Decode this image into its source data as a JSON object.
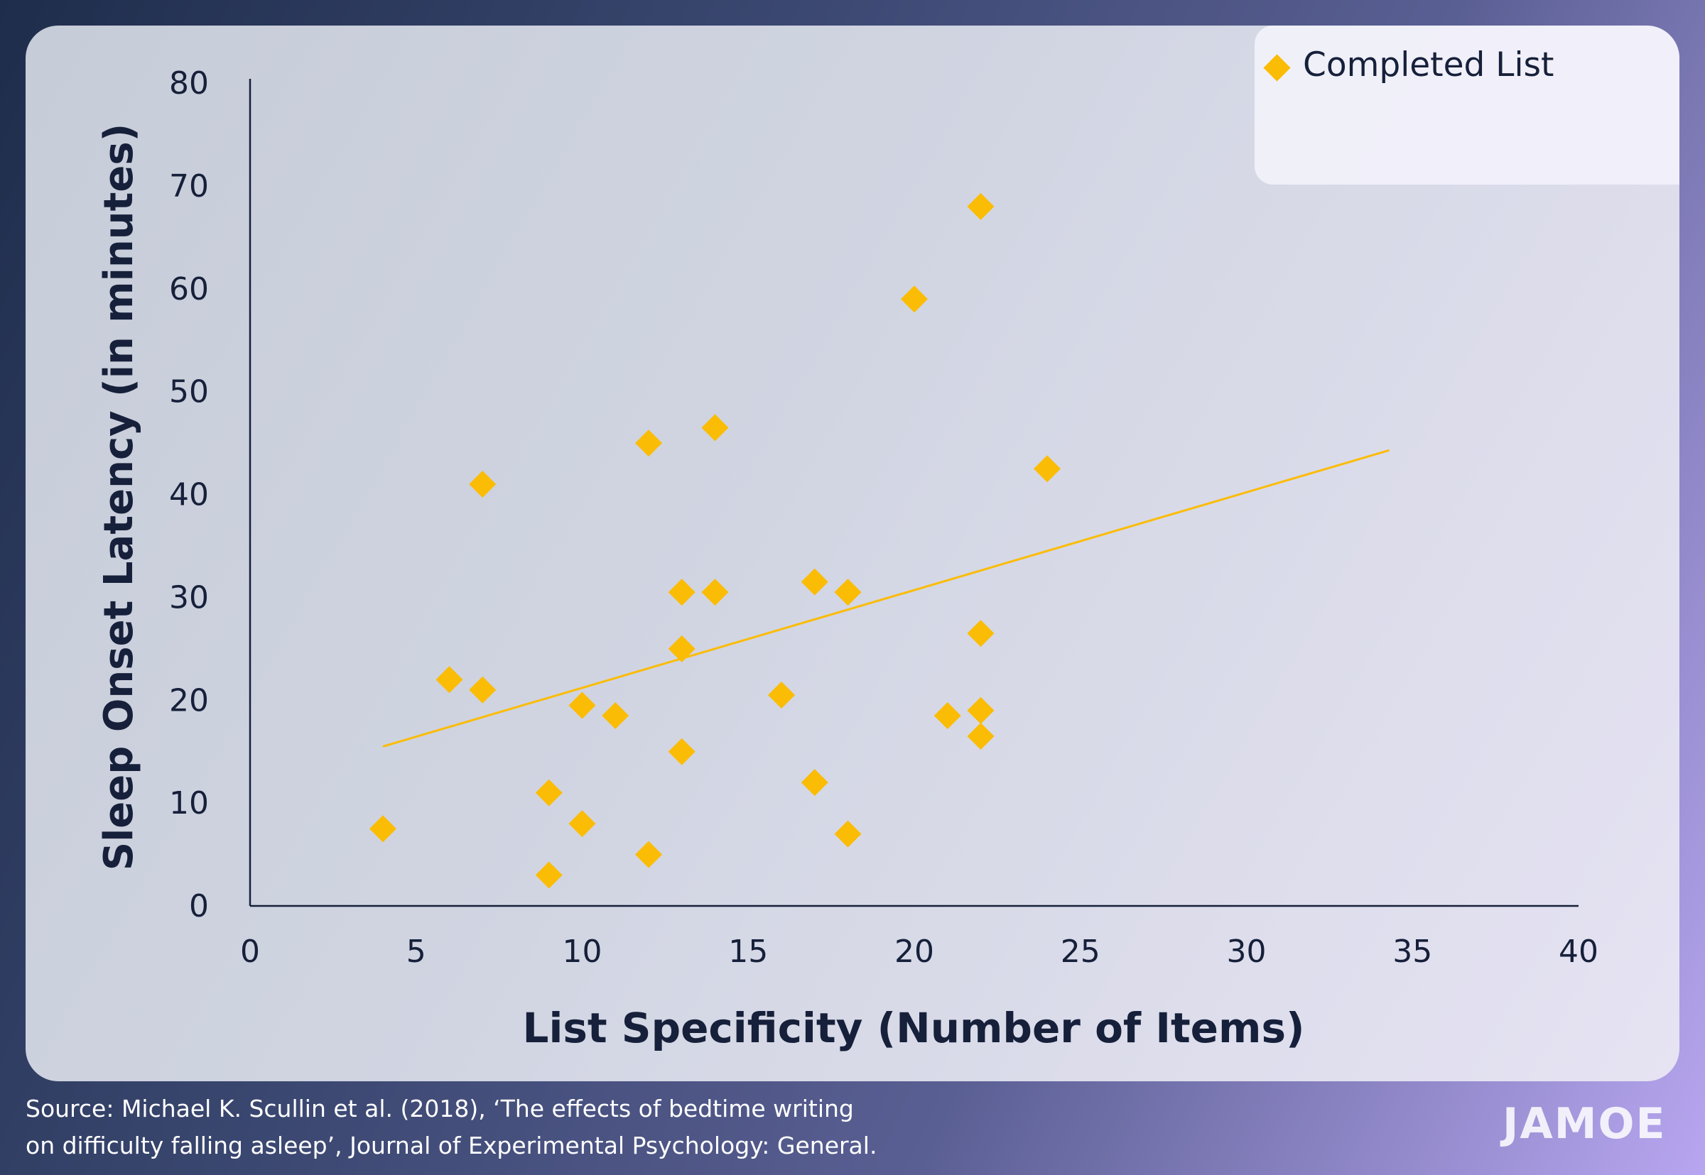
{
  "chart_data": {
    "type": "scatter",
    "title": "",
    "xlabel": "List Specificity (Number of Items)",
    "ylabel": "Sleep Onset Latency (in minutes)",
    "xlim": [
      0,
      40
    ],
    "ylim": [
      0,
      80
    ],
    "xticks": [
      "0",
      "5",
      "10",
      "15",
      "20",
      "25",
      "30",
      "35",
      "40"
    ],
    "yticks": [
      "0",
      "10",
      "20",
      "30",
      "40",
      "50",
      "60",
      "70",
      "80"
    ],
    "grid": false,
    "legend_position": "top-right",
    "series": [
      {
        "name": "Completed List",
        "color": "#fbbc05",
        "marker": "diamond",
        "points": [
          [
            4,
            7.5
          ],
          [
            6,
            22
          ],
          [
            7,
            21
          ],
          [
            7,
            41
          ],
          [
            9,
            11
          ],
          [
            9,
            3
          ],
          [
            10,
            19.5
          ],
          [
            10,
            8
          ],
          [
            11,
            18.5
          ],
          [
            12,
            45
          ],
          [
            12,
            5
          ],
          [
            13,
            30.5
          ],
          [
            13,
            25
          ],
          [
            13,
            15
          ],
          [
            14,
            46.5
          ],
          [
            14,
            30.5
          ],
          [
            16,
            20.5
          ],
          [
            17,
            31.5
          ],
          [
            17,
            12
          ],
          [
            18,
            30.5
          ],
          [
            18,
            7
          ],
          [
            20,
            59
          ],
          [
            21,
            18.5
          ],
          [
            22,
            68
          ],
          [
            22,
            26.5
          ],
          [
            22,
            19
          ],
          [
            22,
            16.5
          ],
          [
            24,
            42.5
          ]
        ]
      }
    ],
    "trendline": {
      "color": "#fbbc05",
      "x": [
        4,
        34.3
      ],
      "y": [
        15.5,
        44.3
      ]
    }
  },
  "source_lines": [
    "Source: Michael K. Scullin et al. (2018), ‘The effects of bedtime writing",
    "on difficulty falling asleep’, Journal of Experimental Psychology: General."
  ],
  "logo_text": "JAMOE"
}
